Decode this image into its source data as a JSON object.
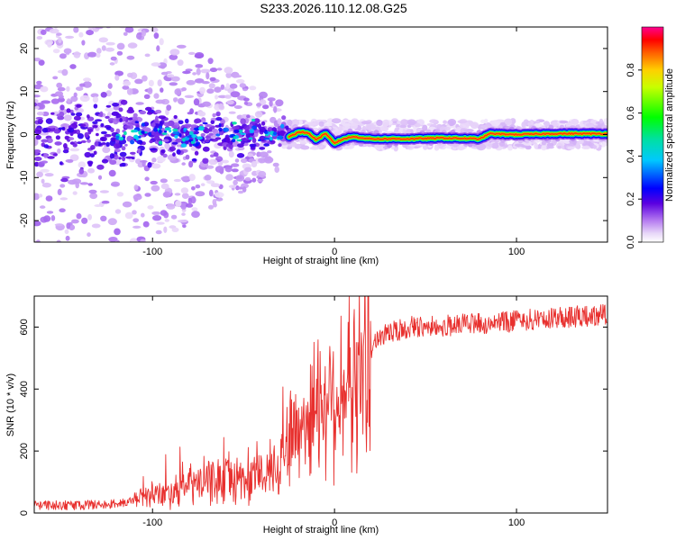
{
  "page": {
    "title": "S233.2026.110.12.08.G25"
  },
  "chart_data": [
    {
      "type": "heatmap",
      "title": "S233.2026.110.12.08.G25",
      "xlabel": "Height of straight line (km)",
      "ylabel": "Frequency (Hz)",
      "xlim": [
        -165,
        150
      ],
      "ylim": [
        -25,
        25
      ],
      "x_ticks": [
        -100,
        0,
        100
      ],
      "x_tick_labels": [
        "-100",
        "0",
        "100"
      ],
      "y_ticks": [
        -20,
        -10,
        0,
        10,
        20
      ],
      "y_tick_labels": [
        "-20",
        "-10",
        "0",
        "10",
        "20"
      ],
      "colorbar": {
        "label": "Normalized spectral amplitude",
        "range": [
          0,
          1
        ],
        "ticks": [
          0.0,
          0.2,
          0.4,
          0.6,
          0.8
        ],
        "tick_labels": [
          "0.0",
          "0.2",
          "0.4",
          "0.6",
          "0.8"
        ]
      },
      "ridge": {
        "x": [
          -25,
          -20,
          -15,
          -10,
          -5,
          0,
          5,
          10,
          20,
          40,
          60,
          80,
          85,
          100,
          120,
          150
        ],
        "freq": [
          -0.5,
          0.5,
          0.5,
          -1.2,
          0.2,
          -2.0,
          -1.0,
          -0.5,
          -1.0,
          -1.0,
          -0.8,
          -1.0,
          0.2,
          0.0,
          0.2,
          0.2
        ],
        "peak_amplitude": 0.9
      }
    },
    {
      "type": "line",
      "title": "",
      "xlabel": "Height of straight line (km)",
      "ylabel": "SNR (10 * v/v)",
      "xlim": [
        -165,
        150
      ],
      "ylim": [
        0,
        700
      ],
      "x_ticks": [
        -100,
        0,
        100
      ],
      "x_tick_labels": [
        "-100",
        "0",
        "100"
      ],
      "y_ticks": [
        0,
        200,
        400,
        600
      ],
      "y_tick_labels": [
        "0",
        "200",
        "400",
        "600"
      ],
      "line_color": "#e8302e",
      "trend": {
        "x": [
          -165,
          -140,
          -120,
          -100,
          -80,
          -60,
          -45,
          -35,
          -25,
          -15,
          -10,
          0,
          10,
          15,
          25,
          40,
          60,
          80,
          100,
          120,
          150
        ],
        "snr": [
          25,
          25,
          30,
          55,
          90,
          110,
          110,
          130,
          240,
          300,
          360,
          380,
          400,
          470,
          570,
          600,
          605,
          610,
          620,
          630,
          640
        ]
      }
    }
  ]
}
